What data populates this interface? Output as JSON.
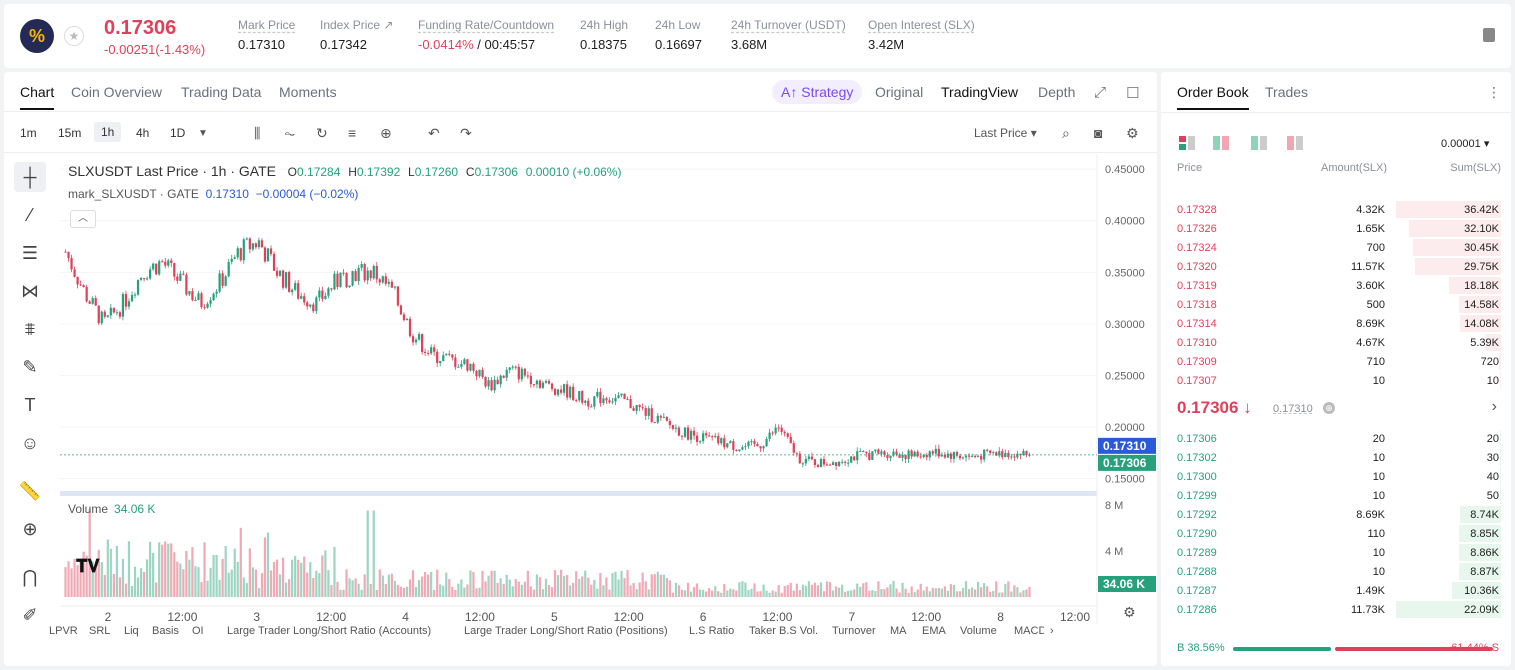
{
  "ticker": {
    "logo_letter": "%",
    "price": "0.17306",
    "change": "-0.00251(-1.43%)",
    "stats": [
      {
        "label": "Mark Price",
        "value": "0.17310"
      },
      {
        "label": "Index Price ↗",
        "value": "0.17342"
      },
      {
        "label": "Funding Rate/Countdown",
        "value_neg": "-0.0414%",
        "value": " / 00:45:57"
      },
      {
        "label": "24h High",
        "value": "0.18375"
      },
      {
        "label": "24h Low",
        "value": "0.16697"
      },
      {
        "label": "24h Turnover (USDT)",
        "value": "3.68M"
      },
      {
        "label": "Open Interest (SLX)",
        "value": "3.42M"
      }
    ]
  },
  "chart_tabs": [
    "Chart",
    "Coin Overview",
    "Trading Data",
    "Moments"
  ],
  "view_tabs": {
    "strategy": "A↑ Strategy",
    "original": "Original",
    "tradingview": "TradingView",
    "depth": "Depth"
  },
  "intervals": [
    "1m",
    "15m",
    "1h",
    "4h",
    "1D"
  ],
  "price_type": "Last Price ▾",
  "legend": {
    "symbol": "SLXUSDT Last Price · 1h · GATE",
    "o_label": "O",
    "o": "0.17284",
    "h_label": "H",
    "h": "0.17392",
    "l_label": "L",
    "l": "0.17260",
    "c_label": "C",
    "c": "0.17306",
    "chg": "0.00010 (+0.06%)",
    "mark": "mark_SLXUSDT · GATE",
    "mark_val": "0.17310",
    "mark_chg": "−0.00004 (−0.02%)"
  },
  "volume": {
    "label": "Volume",
    "value": "34.06 K"
  },
  "price_tags": {
    "mark": "0.17310",
    "last": "0.17306",
    "vol": "34.06 K"
  },
  "chart_data": {
    "type": "candlestick",
    "y_ticks": [
      "0.45000",
      "0.40000",
      "0.35000",
      "0.30000",
      "0.25000",
      "0.20000",
      "0.15000"
    ],
    "ylim": [
      0.14,
      0.455
    ],
    "vol_ticks": [
      "8 M",
      "4 M"
    ],
    "vol_lim": [
      0,
      8.5
    ],
    "x_ticks": [
      "2",
      "12:00",
      "3",
      "12:00",
      "4",
      "12:00",
      "5",
      "12:00",
      "6",
      "12:00",
      "7",
      "12:00",
      "8",
      "12:00"
    ],
    "close_path": [
      0.37,
      0.33,
      0.3,
      0.32,
      0.35,
      0.36,
      0.34,
      0.32,
      0.34,
      0.37,
      0.38,
      0.35,
      0.33,
      0.32,
      0.34,
      0.35,
      0.35,
      0.33,
      0.29,
      0.27,
      0.265,
      0.26,
      0.24,
      0.255,
      0.25,
      0.24,
      0.235,
      0.225,
      0.23,
      0.225,
      0.215,
      0.205,
      0.195,
      0.19,
      0.185,
      0.18,
      0.182,
      0.2,
      0.17,
      0.165,
      0.167,
      0.172,
      0.174,
      0.175,
      0.172,
      0.176,
      0.173,
      0.171,
      0.174,
      0.175,
      0.173
    ]
  },
  "bottom_items": [
    "LPVR",
    "SRL",
    "Liq",
    "Basis",
    "OI",
    "Large Trader Long/Short Ratio (Accounts)",
    "Large Trader Long/Short Ratio (Positions)",
    "L.S Ratio",
    "Taker B.S Vol.",
    "Turnover",
    "MA",
    "EMA",
    "Volume",
    "MACD"
  ],
  "orderbook": {
    "tabs": [
      "Order Book",
      "Trades"
    ],
    "precision": "0.00001 ▾",
    "headers": [
      "Price",
      "Amount(SLX)",
      "Sum(SLX)"
    ],
    "asks": [
      {
        "p": "0.17328",
        "a": "4.32K",
        "s": "36.42K",
        "f": 1.0
      },
      {
        "p": "0.17326",
        "a": "1.65K",
        "s": "32.10K",
        "f": 0.88
      },
      {
        "p": "0.17324",
        "a": "700",
        "s": "30.45K",
        "f": 0.84
      },
      {
        "p": "0.17320",
        "a": "11.57K",
        "s": "29.75K",
        "f": 0.82
      },
      {
        "p": "0.17319",
        "a": "3.60K",
        "s": "18.18K",
        "f": 0.5
      },
      {
        "p": "0.17318",
        "a": "500",
        "s": "14.58K",
        "f": 0.4
      },
      {
        "p": "0.17314",
        "a": "8.69K",
        "s": "14.08K",
        "f": 0.39
      },
      {
        "p": "0.17310",
        "a": "4.67K",
        "s": "5.39K",
        "f": 0.15
      },
      {
        "p": "0.17309",
        "a": "710",
        "s": "720",
        "f": 0.02
      },
      {
        "p": "0.17307",
        "a": "10",
        "s": "10",
        "f": 0.005
      }
    ],
    "mid": "0.17306 ↓",
    "mid_mark": "0.17310",
    "bids": [
      {
        "p": "0.17306",
        "a": "20",
        "s": "20",
        "f": 0.002
      },
      {
        "p": "0.17302",
        "a": "10",
        "s": "30",
        "f": 0.003
      },
      {
        "p": "0.17300",
        "a": "10",
        "s": "40",
        "f": 0.004
      },
      {
        "p": "0.17299",
        "a": "10",
        "s": "50",
        "f": 0.005
      },
      {
        "p": "0.17292",
        "a": "8.69K",
        "s": "8.74K",
        "f": 0.39
      },
      {
        "p": "0.17290",
        "a": "110",
        "s": "8.85K",
        "f": 0.4
      },
      {
        "p": "0.17289",
        "a": "10",
        "s": "8.86K",
        "f": 0.4
      },
      {
        "p": "0.17288",
        "a": "10",
        "s": "8.87K",
        "f": 0.4
      },
      {
        "p": "0.17287",
        "a": "1.49K",
        "s": "10.36K",
        "f": 0.47
      },
      {
        "p": "0.17286",
        "a": "11.73K",
        "s": "22.09K",
        "f": 1.0
      }
    ],
    "buy_ratio": "B 38.56%",
    "sell_ratio": "61.44% S",
    "buy_fraction": 0.3856
  },
  "colors": {
    "up": "#26a17b",
    "down": "#e0405a",
    "mark": "#2a5ad7"
  }
}
